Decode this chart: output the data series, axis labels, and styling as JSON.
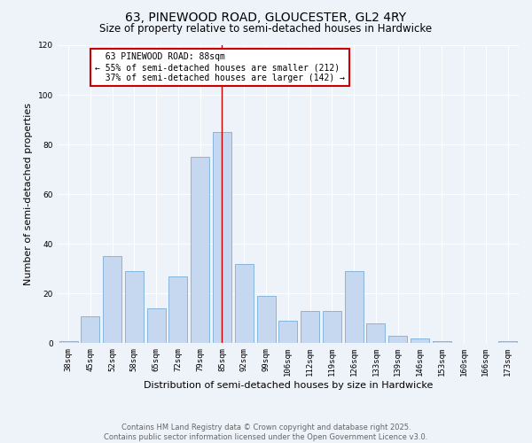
{
  "title": "63, PINEWOOD ROAD, GLOUCESTER, GL2 4RY",
  "subtitle": "Size of property relative to semi-detached houses in Hardwicke",
  "xlabel": "Distribution of semi-detached houses by size in Hardwicke",
  "ylabel": "Number of semi-detached properties",
  "categories": [
    "38sqm",
    "45sqm",
    "52sqm",
    "58sqm",
    "65sqm",
    "72sqm",
    "79sqm",
    "85sqm",
    "92sqm",
    "99sqm",
    "106sqm",
    "112sqm",
    "119sqm",
    "126sqm",
    "133sqm",
    "139sqm",
    "146sqm",
    "153sqm",
    "160sqm",
    "166sqm",
    "173sqm"
  ],
  "values": [
    1,
    11,
    35,
    29,
    14,
    27,
    75,
    85,
    32,
    19,
    9,
    13,
    13,
    29,
    8,
    3,
    2,
    1,
    0,
    0,
    1
  ],
  "bar_color": "#c5d8f0",
  "bar_edge_color": "#7aaed6",
  "reference_bar_index": 7,
  "reference_label": "63 PINEWOOD ROAD: 88sqm",
  "smaller_pct": "55%",
  "smaller_count": 212,
  "larger_pct": "37%",
  "larger_count": 142,
  "ylim": [
    0,
    120
  ],
  "yticks": [
    0,
    20,
    40,
    60,
    80,
    100,
    120
  ],
  "annotation_box_color": "#ffffff",
  "annotation_box_edge_color": "#cc0000",
  "vline_color": "#cc0000",
  "footer_text": "Contains HM Land Registry data © Crown copyright and database right 2025.\nContains public sector information licensed under the Open Government Licence v3.0.",
  "bg_color": "#eef2f9",
  "grid_color": "#ffffff",
  "title_fontsize": 10,
  "subtitle_fontsize": 8.5,
  "tick_fontsize": 6.5,
  "ylabel_fontsize": 8,
  "xlabel_fontsize": 8,
  "annotation_fontsize": 7,
  "footer_fontsize": 6
}
